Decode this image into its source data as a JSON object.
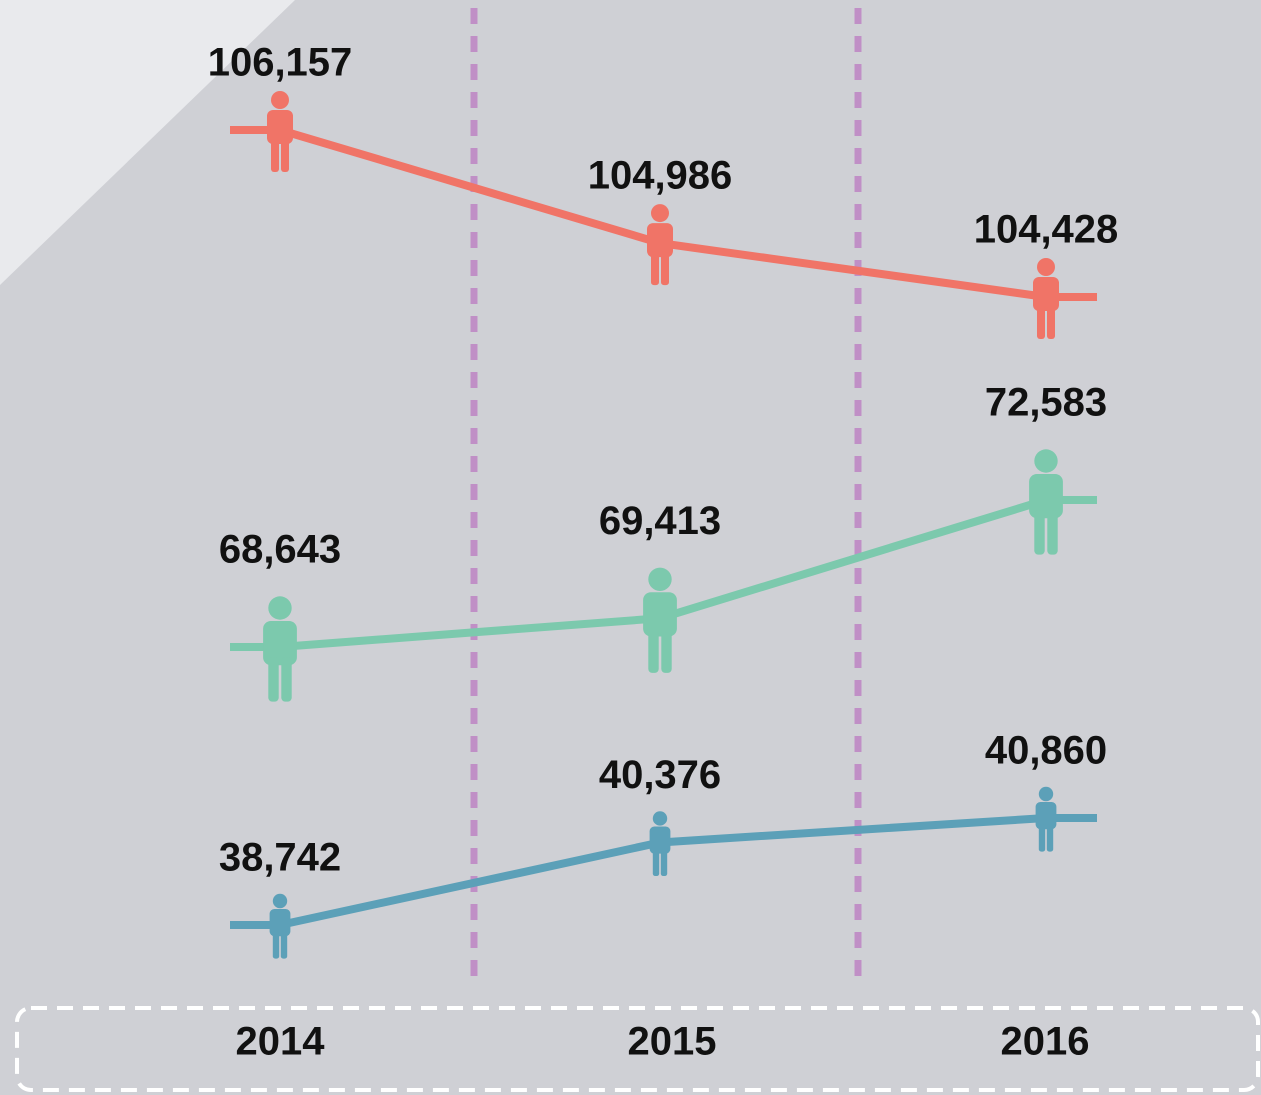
{
  "chart_data": {
    "type": "line",
    "categories": [
      "2014",
      "2015",
      "2016"
    ],
    "series": [
      {
        "color": "#f07467",
        "values": [
          106157,
          104986,
          104428
        ],
        "value_labels": [
          "106,157",
          "104,986",
          "104,428"
        ]
      },
      {
        "color": "#7cc9ad",
        "values": [
          68643,
          69413,
          72583
        ],
        "value_labels": [
          "68,643",
          "69,413",
          "72,583"
        ]
      },
      {
        "color": "#5ca0b8",
        "values": [
          38742,
          40376,
          40860
        ],
        "value_labels": [
          "38,742",
          "40,376",
          "40,860"
        ]
      }
    ]
  }
}
